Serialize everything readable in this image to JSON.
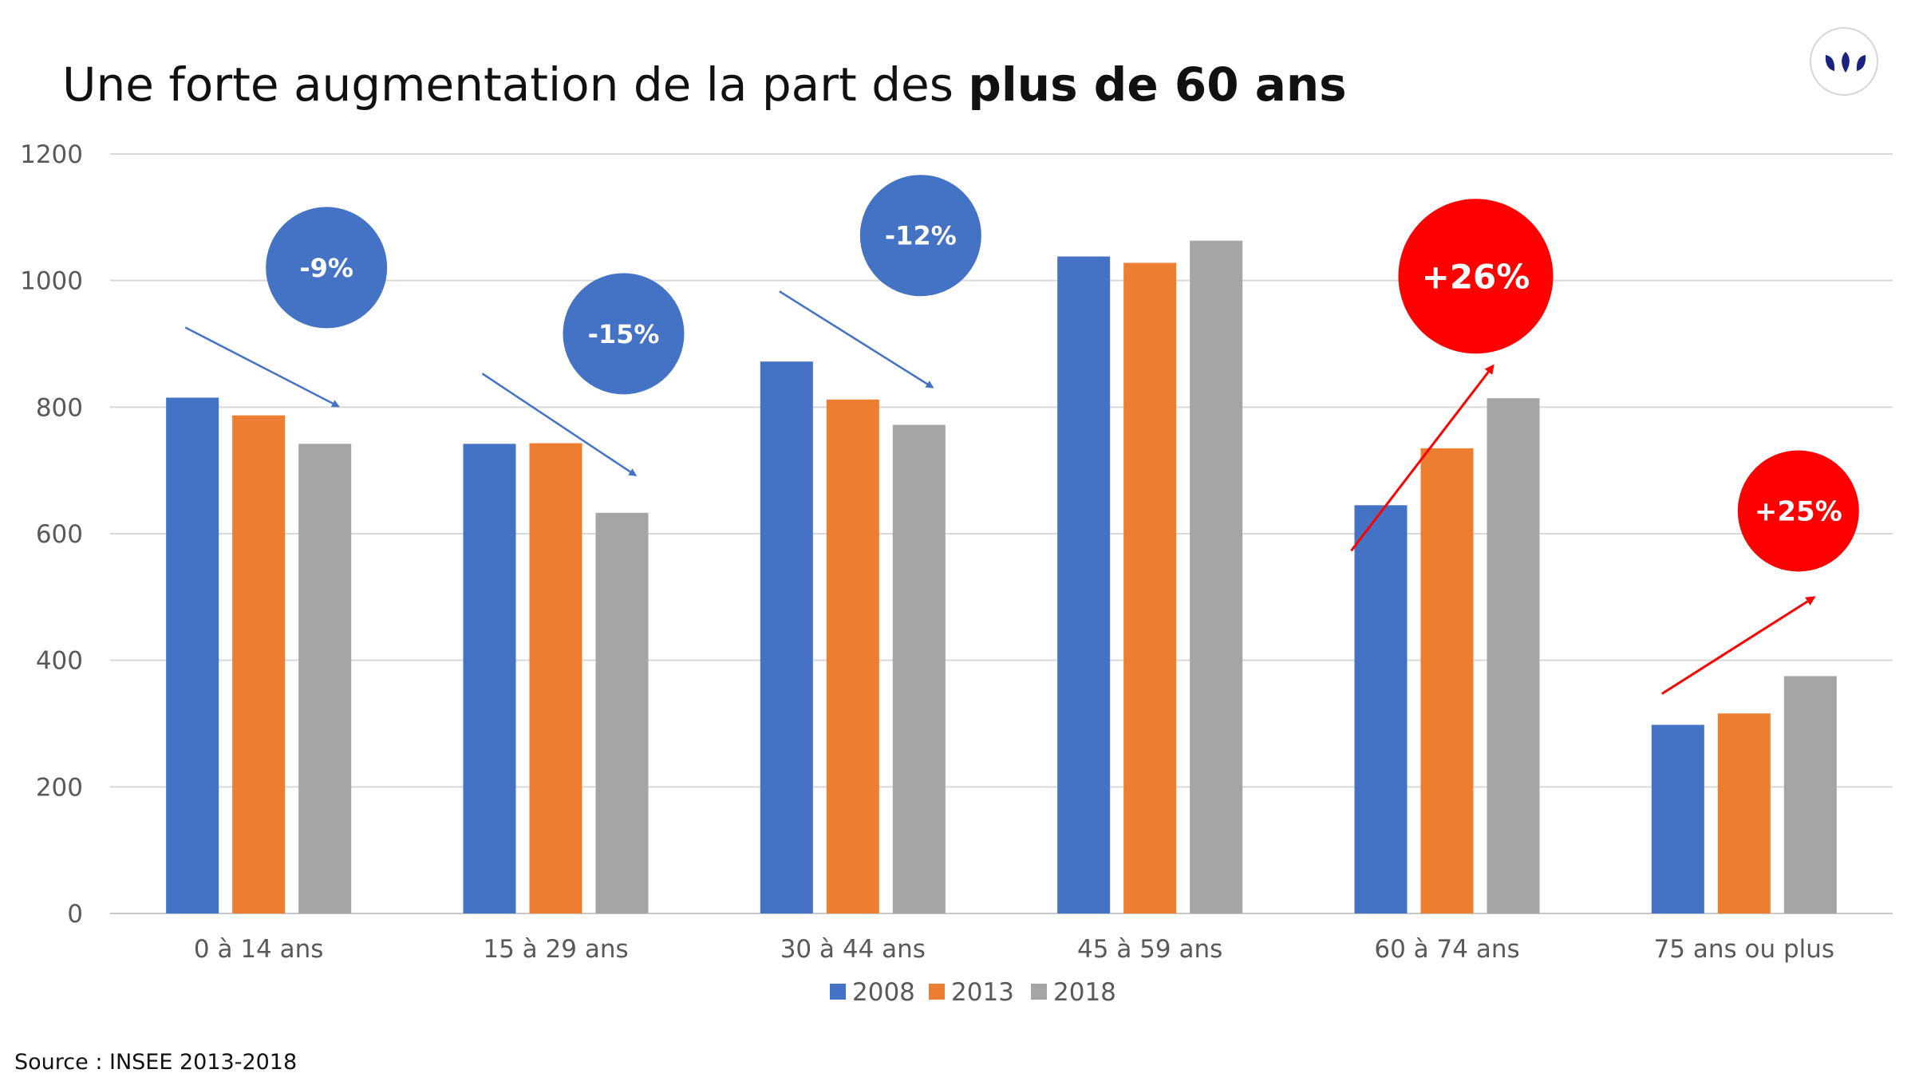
{
  "header": {
    "title_prefix": "Une forte augmentation de la part des ",
    "title_bold": "plus de 60 ans"
  },
  "logo": {
    "icon": "leaves-logo-icon",
    "color": "#1a237e"
  },
  "source": "Source : INSEE 2013-2018",
  "colors": {
    "s2008": "#4472c4",
    "s2013": "#ed7d31",
    "s2018": "#a5a5a5",
    "decrease": "#4472c4",
    "increase": "#ff0000",
    "grid": "#d9d9d9",
    "axis_text": "#595959"
  },
  "chart_data": {
    "type": "bar",
    "title": "",
    "xlabel": "",
    "ylabel": "",
    "ylim": [
      0,
      1200
    ],
    "yticks": [
      0,
      200,
      400,
      600,
      800,
      1000,
      1200
    ],
    "grid": true,
    "legend_position": "bottom",
    "categories": [
      "0 à 14 ans",
      "15 à 29 ans",
      "30 à 44 ans",
      "45 à 59 ans",
      "60 à 74 ans",
      "75 ans ou plus"
    ],
    "series": [
      {
        "name": "2008",
        "values": [
          815,
          742,
          872,
          1038,
          645,
          298
        ]
      },
      {
        "name": "2013",
        "values": [
          787,
          743,
          812,
          1028,
          735,
          316
        ]
      },
      {
        "name": "2018",
        "values": [
          742,
          633,
          772,
          1063,
          814,
          375
        ]
      }
    ],
    "annotations": [
      {
        "category": "0 à 14 ans",
        "label": "-9%",
        "trend": "decrease"
      },
      {
        "category": "15 à 29 ans",
        "label": "-15%",
        "trend": "decrease"
      },
      {
        "category": "30 à 44 ans",
        "label": "-12%",
        "trend": "decrease"
      },
      {
        "category": "60 à 74 ans",
        "label": "+26%",
        "trend": "increase"
      },
      {
        "category": "75 ans ou plus",
        "label": "+25%",
        "trend": "increase"
      }
    ]
  }
}
